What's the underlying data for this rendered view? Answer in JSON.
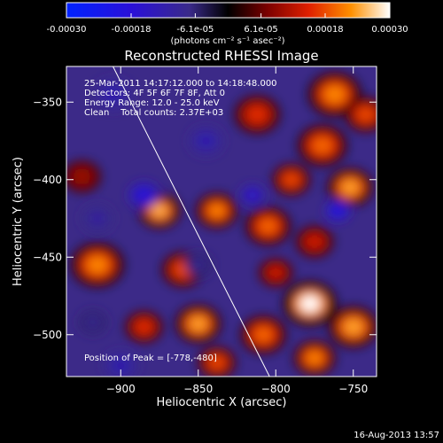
{
  "chart_data": {
    "type": "heatmap",
    "title": "Reconstructed RHESSI Image",
    "xlabel": "Heliocentric X (arcsec)",
    "ylabel": "Heliocentric Y (arcsec)",
    "xlim": [
      -935,
      -735
    ],
    "ylim": [
      -527,
      -327
    ],
    "xticks": [
      -900,
      -850,
      -800,
      -750
    ],
    "yticks": [
      -350,
      -400,
      -450,
      -500
    ],
    "colorbar": {
      "range": [
        -0.0003,
        0.0003
      ],
      "ticks": [
        -0.0003,
        -0.00018,
        -6.1e-05,
        6.1e-05,
        0.00018,
        0.0003
      ],
      "tick_labels": [
        "-0.00030",
        "-0.00018",
        "-6.1e-05",
        "6.1e-05",
        "0.00018",
        "0.00030"
      ],
      "units": "(photons cm⁻² s⁻¹ asec⁻²)"
    },
    "annotations": [
      "25-Mar-2011 14:17:12.000 to 14:18:48.000",
      "Detectors: 4F 5F 6F 7F 8F, Att 0",
      "Energy Range: 12.0 - 25.0 keV",
      "Clean    Total counts: 2.37E+03"
    ],
    "peak_label": "Position of Peak = [-778,-480]",
    "peak_position": [
      -778,
      -480
    ],
    "limb_line": [
      [
        -906,
        -325
      ],
      [
        -804,
        -527
      ]
    ],
    "blobs": [
      {
        "x": -762,
        "y": -345,
        "v": 0.00022,
        "r": 14
      },
      {
        "x": -742,
        "y": -358,
        "v": 0.00018,
        "r": 11
      },
      {
        "x": -812,
        "y": -358,
        "v": 0.00016,
        "r": 12
      },
      {
        "x": -770,
        "y": -378,
        "v": 0.0002,
        "r": 13
      },
      {
        "x": -790,
        "y": -400,
        "v": 0.00018,
        "r": 10
      },
      {
        "x": -752,
        "y": -405,
        "v": 0.00024,
        "r": 12
      },
      {
        "x": -925,
        "y": -398,
        "v": 0.0001,
        "r": 10
      },
      {
        "x": -875,
        "y": -420,
        "v": 0.00025,
        "r": 11
      },
      {
        "x": -838,
        "y": -420,
        "v": 0.00022,
        "r": 11
      },
      {
        "x": -805,
        "y": -430,
        "v": 0.0002,
        "r": 12
      },
      {
        "x": -775,
        "y": -440,
        "v": 0.00014,
        "r": 10
      },
      {
        "x": -915,
        "y": -455,
        "v": 0.00022,
        "r": 14
      },
      {
        "x": -860,
        "y": -458,
        "v": 0.00018,
        "r": 11
      },
      {
        "x": -800,
        "y": -460,
        "v": 0.00014,
        "r": 9
      },
      {
        "x": -778,
        "y": -480,
        "v": 0.0003,
        "r": 14
      },
      {
        "x": -750,
        "y": -495,
        "v": 0.00024,
        "r": 13
      },
      {
        "x": -850,
        "y": -493,
        "v": 0.00024,
        "r": 12
      },
      {
        "x": -885,
        "y": -495,
        "v": 0.00016,
        "r": 10
      },
      {
        "x": -808,
        "y": -500,
        "v": 0.0002,
        "r": 12
      },
      {
        "x": -838,
        "y": -518,
        "v": 0.00018,
        "r": 10
      },
      {
        "x": -775,
        "y": -515,
        "v": 0.00022,
        "r": 11
      },
      {
        "x": -918,
        "y": -492,
        "v": -8e-05,
        "r": 9
      },
      {
        "x": -905,
        "y": -345,
        "v": -0.00012,
        "r": 12
      },
      {
        "x": -885,
        "y": -410,
        "v": -0.00018,
        "r": 10
      },
      {
        "x": -915,
        "y": -425,
        "v": -0.0001,
        "r": 10
      },
      {
        "x": -845,
        "y": -375,
        "v": -0.00012,
        "r": 11
      },
      {
        "x": -815,
        "y": -410,
        "v": -0.00016,
        "r": 8
      },
      {
        "x": -760,
        "y": -420,
        "v": -0.0002,
        "r": 8
      },
      {
        "x": -850,
        "y": -455,
        "v": -8e-05,
        "r": 9
      },
      {
        "x": -900,
        "y": -520,
        "v": -0.00012,
        "r": 11
      }
    ]
  },
  "footer": {
    "date": "16-Aug-2013 13:57"
  }
}
